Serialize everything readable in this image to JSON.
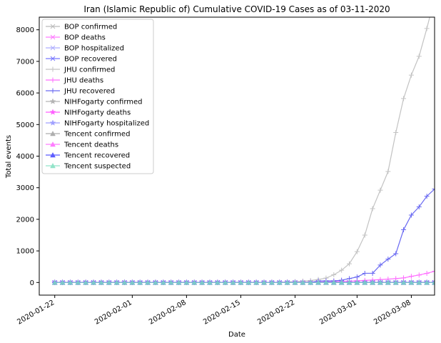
{
  "chart_data": {
    "type": "line",
    "title": "Iran (Islamic Republic of) Cumulative COVID-19 Cases as of 03-11-2020",
    "xlabel": "Date",
    "ylabel": "Total events",
    "x_range": [
      "2020-01-20",
      "2020-03-11"
    ],
    "ylim": [
      -400,
      8400
    ],
    "y_ticks": [
      0,
      1000,
      2000,
      3000,
      4000,
      5000,
      6000,
      7000,
      8000
    ],
    "x_ticks": [
      "2020-01-22",
      "2020-02-01",
      "2020-02-08",
      "2020-02-15",
      "2020-02-22",
      "2020-03-01",
      "2020-03-08"
    ],
    "grid": false,
    "legend_position": "top-left",
    "x_dates": [
      "2020-01-22",
      "2020-01-23",
      "2020-01-24",
      "2020-01-25",
      "2020-01-26",
      "2020-01-27",
      "2020-01-28",
      "2020-01-29",
      "2020-01-30",
      "2020-01-31",
      "2020-02-01",
      "2020-02-02",
      "2020-02-03",
      "2020-02-04",
      "2020-02-05",
      "2020-02-06",
      "2020-02-07",
      "2020-02-08",
      "2020-02-09",
      "2020-02-10",
      "2020-02-11",
      "2020-02-12",
      "2020-02-13",
      "2020-02-14",
      "2020-02-15",
      "2020-02-16",
      "2020-02-17",
      "2020-02-18",
      "2020-02-19",
      "2020-02-20",
      "2020-02-21",
      "2020-02-22",
      "2020-02-23",
      "2020-02-24",
      "2020-02-25",
      "2020-02-26",
      "2020-02-27",
      "2020-02-28",
      "2020-02-29",
      "2020-03-01",
      "2020-03-02",
      "2020-03-03",
      "2020-03-04",
      "2020-03-05",
      "2020-03-06",
      "2020-03-07",
      "2020-03-08",
      "2020-03-09",
      "2020-03-10",
      "2020-03-11"
    ],
    "series": [
      {
        "name": "BOP confirmed",
        "color": "#b0b0b0",
        "marker": "x",
        "values": [
          0,
          0,
          0,
          0,
          0,
          0,
          0,
          0,
          0,
          0,
          0,
          0,
          0,
          0,
          0,
          0,
          0,
          0,
          0,
          0,
          0,
          0,
          0,
          0,
          0,
          0,
          0,
          0,
          0,
          0,
          0,
          0,
          0,
          0,
          0,
          0,
          0,
          0,
          0,
          0,
          0,
          0,
          0,
          0,
          0,
          0,
          0,
          0,
          0,
          0
        ]
      },
      {
        "name": "BOP deaths",
        "color": "#ff66ff",
        "marker": "x",
        "values": [
          0,
          0,
          0,
          0,
          0,
          0,
          0,
          0,
          0,
          0,
          0,
          0,
          0,
          0,
          0,
          0,
          0,
          0,
          0,
          0,
          0,
          0,
          0,
          0,
          0,
          0,
          0,
          0,
          0,
          0,
          0,
          0,
          0,
          0,
          0,
          0,
          0,
          0,
          0,
          0,
          0,
          0,
          0,
          0,
          0,
          0,
          0,
          0,
          0,
          0
        ]
      },
      {
        "name": "BOP hospitalized",
        "color": "#a0a0ff",
        "marker": "x",
        "values": [
          0,
          0,
          0,
          0,
          0,
          0,
          0,
          0,
          0,
          0,
          0,
          0,
          0,
          0,
          0,
          0,
          0,
          0,
          0,
          0,
          0,
          0,
          0,
          0,
          0,
          0,
          0,
          0,
          0,
          0,
          0,
          0,
          0,
          0,
          0,
          0,
          0,
          0,
          0,
          0,
          0,
          0,
          0,
          0,
          0,
          0,
          0,
          0,
          0,
          0
        ]
      },
      {
        "name": "BOP recovered",
        "color": "#6060ff",
        "marker": "x",
        "values": [
          0,
          0,
          0,
          0,
          0,
          0,
          0,
          0,
          0,
          0,
          0,
          0,
          0,
          0,
          0,
          0,
          0,
          0,
          0,
          0,
          0,
          0,
          0,
          0,
          0,
          0,
          0,
          0,
          0,
          0,
          0,
          0,
          0,
          0,
          0,
          0,
          0,
          0,
          0,
          0,
          0,
          0,
          0,
          0,
          0,
          0,
          0,
          0,
          0,
          0
        ]
      },
      {
        "name": "JHU confirmed",
        "color": "#b8b8b8",
        "marker": "+",
        "values": [
          0,
          0,
          0,
          0,
          0,
          0,
          0,
          0,
          0,
          0,
          0,
          0,
          0,
          0,
          0,
          0,
          0,
          0,
          0,
          0,
          0,
          0,
          0,
          0,
          0,
          0,
          0,
          0,
          2,
          5,
          18,
          28,
          43,
          61,
          95,
          139,
          245,
          388,
          593,
          978,
          1501,
          2336,
          2922,
          3513,
          4747,
          5823,
          6566,
          7161,
          8042,
          9000
        ]
      },
      {
        "name": "JHU deaths",
        "color": "#ff55ff",
        "marker": "+",
        "values": [
          0,
          0,
          0,
          0,
          0,
          0,
          0,
          0,
          0,
          0,
          0,
          0,
          0,
          0,
          0,
          0,
          0,
          0,
          0,
          0,
          0,
          0,
          0,
          0,
          0,
          0,
          0,
          0,
          2,
          2,
          4,
          5,
          8,
          12,
          16,
          19,
          26,
          34,
          43,
          54,
          66,
          77,
          92,
          107,
          124,
          145,
          194,
          237,
          291,
          354
        ]
      },
      {
        "name": "JHU recovered",
        "color": "#5050f0",
        "marker": "+",
        "values": [
          0,
          0,
          0,
          0,
          0,
          0,
          0,
          0,
          0,
          0,
          0,
          0,
          0,
          0,
          0,
          0,
          0,
          0,
          0,
          0,
          0,
          0,
          0,
          0,
          0,
          0,
          0,
          0,
          0,
          0,
          0,
          0,
          0,
          0,
          49,
          49,
          49,
          73,
          123,
          175,
          291,
          291,
          552,
          739,
          913,
          1669,
          2134,
          2394,
          2731,
          2959
        ]
      },
      {
        "name": "NIHFogarty confirmed",
        "color": "#a8a8a8",
        "marker": "*",
        "values": [
          0,
          0,
          0,
          0,
          0,
          0,
          0,
          0,
          0,
          0,
          0,
          0,
          0,
          0,
          0,
          0,
          0,
          0,
          0,
          0,
          0,
          0,
          0,
          0,
          0,
          0,
          0,
          0,
          0,
          0,
          0,
          0,
          0,
          0,
          0,
          0,
          0,
          0,
          0,
          0,
          0,
          0,
          0,
          0,
          0,
          0,
          0,
          0,
          0,
          0
        ]
      },
      {
        "name": "NIHFogarty deaths",
        "color": "#ff44ff",
        "marker": "*",
        "values": [
          0,
          0,
          0,
          0,
          0,
          0,
          0,
          0,
          0,
          0,
          0,
          0,
          0,
          0,
          0,
          0,
          0,
          0,
          0,
          0,
          0,
          0,
          0,
          0,
          0,
          0,
          0,
          0,
          0,
          0,
          0,
          0,
          0,
          0,
          0,
          0,
          0,
          0,
          0,
          0,
          0,
          0,
          0,
          0,
          0,
          0,
          0,
          0,
          0,
          0
        ]
      },
      {
        "name": "NIHFogarty hospitalized",
        "color": "#9090ff",
        "marker": "*",
        "values": [
          0,
          0,
          0,
          0,
          0,
          0,
          0,
          0,
          0,
          0,
          0,
          0,
          0,
          0,
          0,
          0,
          0,
          0,
          0,
          0,
          0,
          0,
          0,
          0,
          0,
          0,
          0,
          0,
          0,
          0,
          0,
          0,
          0,
          0,
          0,
          0,
          0,
          0,
          0,
          0,
          0,
          0,
          0,
          0,
          0,
          0,
          0,
          0,
          0,
          0
        ]
      },
      {
        "name": "Tencent confirmed",
        "color": "#a0a0a0",
        "marker": "^",
        "values": [
          0,
          0,
          0,
          0,
          0,
          0,
          0,
          0,
          0,
          0,
          0,
          0,
          0,
          0,
          0,
          0,
          0,
          0,
          0,
          0,
          0,
          0,
          0,
          0,
          0,
          0,
          0,
          0,
          0,
          0,
          0,
          0,
          0,
          0,
          0,
          0,
          0,
          0,
          0,
          0,
          0,
          0,
          0,
          0,
          0,
          0,
          0,
          0,
          0,
          0
        ]
      },
      {
        "name": "Tencent deaths",
        "color": "#ff66ff",
        "marker": "^",
        "values": [
          0,
          0,
          0,
          0,
          0,
          0,
          0,
          0,
          0,
          0,
          0,
          0,
          0,
          0,
          0,
          0,
          0,
          0,
          0,
          0,
          0,
          0,
          0,
          0,
          0,
          0,
          0,
          0,
          0,
          0,
          0,
          0,
          0,
          0,
          0,
          0,
          0,
          0,
          0,
          0,
          0,
          0,
          0,
          0,
          0,
          0,
          0,
          0,
          0,
          0
        ]
      },
      {
        "name": "Tencent recovered",
        "color": "#4040ff",
        "marker": "^",
        "values": [
          0,
          0,
          0,
          0,
          0,
          0,
          0,
          0,
          0,
          0,
          0,
          0,
          0,
          0,
          0,
          0,
          0,
          0,
          0,
          0,
          0,
          0,
          0,
          0,
          0,
          0,
          0,
          0,
          0,
          0,
          0,
          0,
          0,
          0,
          0,
          0,
          0,
          0,
          0,
          0,
          0,
          0,
          0,
          0,
          0,
          0,
          0,
          0,
          0,
          0
        ]
      },
      {
        "name": "Tencent suspected",
        "color": "#80e0c0",
        "marker": "^",
        "values": [
          0,
          0,
          0,
          0,
          0,
          0,
          0,
          0,
          0,
          0,
          0,
          0,
          0,
          0,
          0,
          0,
          0,
          0,
          0,
          0,
          0,
          0,
          0,
          0,
          0,
          0,
          0,
          0,
          0,
          0,
          0,
          0,
          0,
          0,
          0,
          0,
          0,
          0,
          0,
          0,
          0,
          0,
          0,
          0,
          0,
          0,
          0,
          0,
          0,
          0
        ]
      }
    ]
  }
}
